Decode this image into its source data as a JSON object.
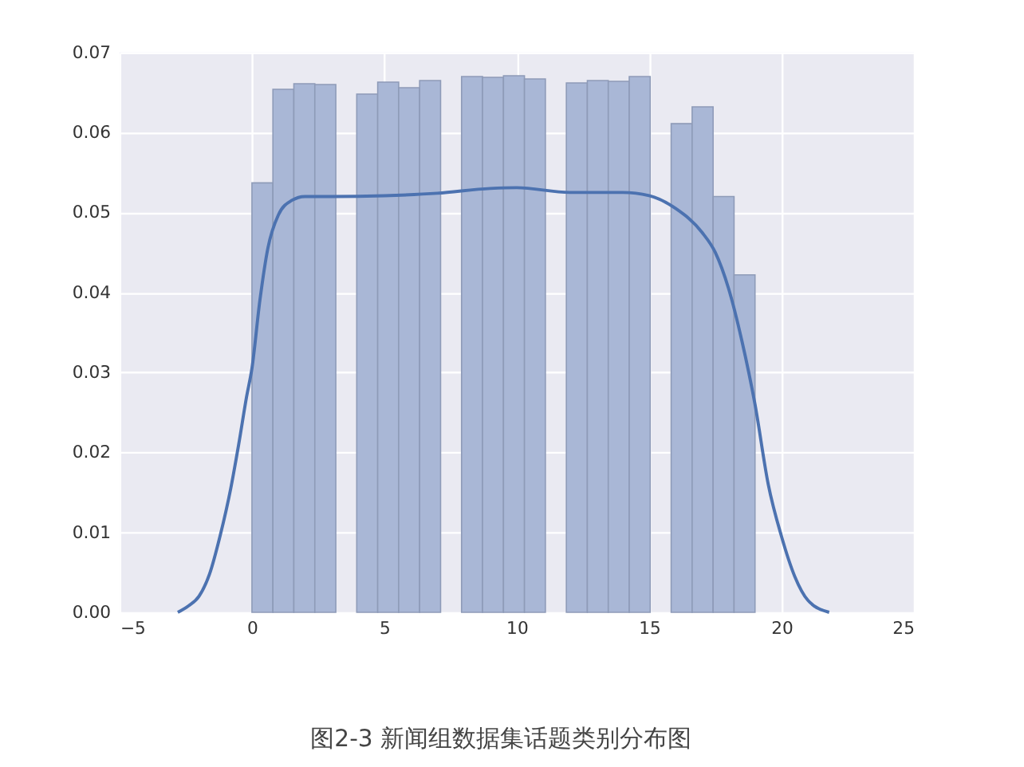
{
  "chart_data": {
    "type": "histogram",
    "bins": [
      0,
      0.792,
      1.583,
      2.375,
      3.167,
      3.958,
      4.75,
      5.542,
      6.333,
      7.125,
      7.917,
      8.708,
      9.5,
      10.292,
      11.083,
      11.875,
      12.667,
      13.458,
      14.25,
      15.042,
      15.833,
      16.625,
      17.417,
      18.208,
      19
    ],
    "values": [
      0.0537,
      0.0654,
      0.0661,
      0.066,
      0,
      0.0648,
      0.0663,
      0.0656,
      0.0665,
      0,
      0.067,
      0.0669,
      0.0671,
      0.0667,
      0,
      0.0662,
      0.0665,
      0.0664,
      0.067,
      0,
      0.0611,
      0.0632,
      0.052,
      0.0422
    ],
    "color": "#a9b7d6",
    "series": [
      {
        "type": "line",
        "color": "#4c72b0",
        "x": [
          -2.8,
          -2.4,
          -2,
          -1.6,
          -1.2,
          -0.8,
          -0.5,
          -0.2,
          0,
          0.3,
          0.6,
          1,
          1.5,
          2,
          3,
          5,
          7,
          9,
          10,
          12,
          14,
          15,
          16,
          17,
          17.5,
          18,
          18.5,
          19,
          19.5,
          20,
          20.5,
          21,
          21.8
        ],
        "values": [
          0,
          0.0008,
          0.002,
          0.0048,
          0.0096,
          0.0155,
          0.021,
          0.027,
          0.0305,
          0.039,
          0.0455,
          0.0497,
          0.0515,
          0.052,
          0.052,
          0.0521,
          0.0524,
          0.053,
          0.0531,
          0.0525,
          0.0525,
          0.0521,
          0.0505,
          0.0475,
          0.045,
          0.0405,
          0.034,
          0.026,
          0.016,
          0.0095,
          0.0045,
          0.0015,
          0
        ]
      }
    ],
    "xlim": [
      -5,
      25
    ],
    "xticks": [
      -5,
      0,
      5,
      10,
      15,
      20,
      25
    ],
    "ylim": [
      0,
      0.07
    ],
    "yticks": [
      {
        "value": 0,
        "label": "0.00"
      },
      {
        "value": 0.01,
        "label": "0.01"
      },
      {
        "value": 0.02,
        "label": "0.02"
      },
      {
        "value": 0.03,
        "label": "0.03"
      },
      {
        "value": 0.04,
        "label": "0.04"
      },
      {
        "value": 0.05,
        "label": "0.05"
      },
      {
        "value": 0.06,
        "label": "0.06"
      },
      {
        "value": 0.07,
        "label": "0.07"
      }
    ],
    "grid": true,
    "annotations": [
      "图2-3  新闻组数据集话题类别分布图"
    ]
  }
}
